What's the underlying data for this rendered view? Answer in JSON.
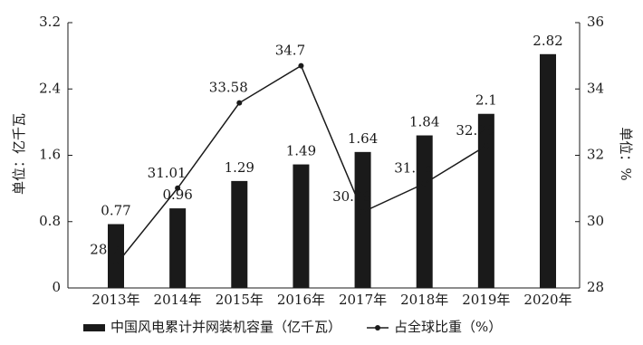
{
  "chart_data": {
    "type": "bar",
    "y_label": "单位：亿千瓦",
    "y2_label": "单位：%",
    "categories": [
      "2013年",
      "2014年",
      "2015年",
      "2016年",
      "2017年",
      "2018年",
      "2019年",
      "2020年"
    ],
    "series": [
      {
        "name": "中国风电累计并网装机容量（亿千瓦）",
        "type": "bar",
        "color": "#1a1a1a",
        "values": [
          0.77,
          0.96,
          1.29,
          1.49,
          1.64,
          1.84,
          2.1,
          2.82
        ]
      },
      {
        "name": "占全球比重（%）",
        "type": "line",
        "axis": "y2",
        "color": "#1a1a1a",
        "values": [
          28.7,
          31.01,
          33.58,
          34.7,
          30.29,
          31.15,
          32.29,
          null
        ]
      }
    ],
    "ylim": [
      0,
      3.2
    ],
    "yticks": [
      0,
      0.8,
      1.6,
      2.4,
      3.2
    ],
    "y2lim": [
      28,
      36
    ],
    "y2ticks": [
      28,
      30,
      32,
      34,
      36
    ],
    "legend": "bottom"
  }
}
